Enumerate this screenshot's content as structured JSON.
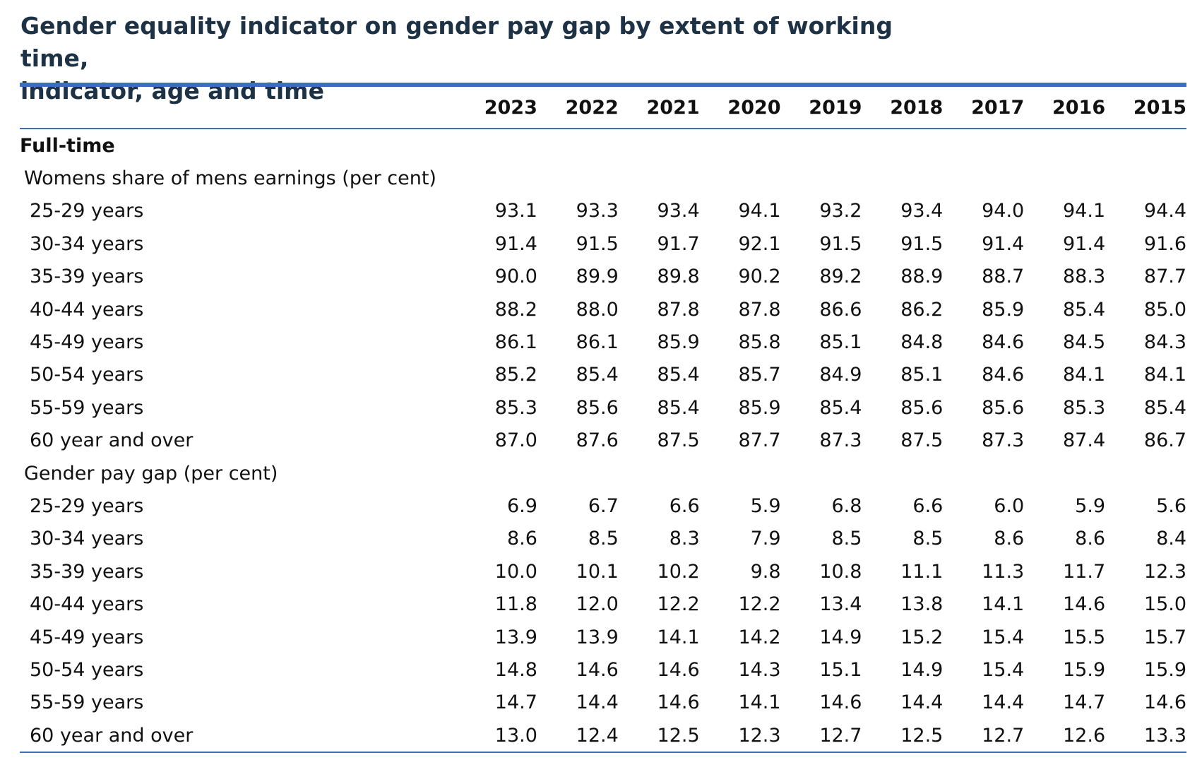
{
  "title_lines": [
    "Gender equality indicator on gender pay gap by extent of working time,",
    "indicator, age and time"
  ],
  "columns": [
    "2023",
    "2022",
    "2021",
    "2020",
    "2019",
    "2018",
    "2017",
    "2016",
    "2015"
  ],
  "section": "Full-time",
  "indicators": [
    {
      "label": "Womens share of mens earnings (per cent)",
      "rows": [
        {
          "label": "25-29 years",
          "values": [
            "93.1",
            "93.3",
            "93.4",
            "94.1",
            "93.2",
            "93.4",
            "94.0",
            "94.1",
            "94.4"
          ]
        },
        {
          "label": "30-34 years",
          "values": [
            "91.4",
            "91.5",
            "91.7",
            "92.1",
            "91.5",
            "91.5",
            "91.4",
            "91.4",
            "91.6"
          ]
        },
        {
          "label": "35-39 years",
          "values": [
            "90.0",
            "89.9",
            "89.8",
            "90.2",
            "89.2",
            "88.9",
            "88.7",
            "88.3",
            "87.7"
          ]
        },
        {
          "label": "40-44 years",
          "values": [
            "88.2",
            "88.0",
            "87.8",
            "87.8",
            "86.6",
            "86.2",
            "85.9",
            "85.4",
            "85.0"
          ]
        },
        {
          "label": "45-49 years",
          "values": [
            "86.1",
            "86.1",
            "85.9",
            "85.8",
            "85.1",
            "84.8",
            "84.6",
            "84.5",
            "84.3"
          ]
        },
        {
          "label": "50-54 years",
          "values": [
            "85.2",
            "85.4",
            "85.4",
            "85.7",
            "84.9",
            "85.1",
            "84.6",
            "84.1",
            "84.1"
          ]
        },
        {
          "label": "55-59 years",
          "values": [
            "85.3",
            "85.6",
            "85.4",
            "85.9",
            "85.4",
            "85.6",
            "85.6",
            "85.3",
            "85.4"
          ]
        },
        {
          "label": "60 year and over",
          "values": [
            "87.0",
            "87.6",
            "87.5",
            "87.7",
            "87.3",
            "87.5",
            "87.3",
            "87.4",
            "86.7"
          ]
        }
      ]
    },
    {
      "label": "Gender pay gap (per cent)",
      "rows": [
        {
          "label": "25-29 years",
          "values": [
            "6.9",
            "6.7",
            "6.6",
            "5.9",
            "6.8",
            "6.6",
            "6.0",
            "5.9",
            "5.6"
          ]
        },
        {
          "label": "30-34 years",
          "values": [
            "8.6",
            "8.5",
            "8.3",
            "7.9",
            "8.5",
            "8.5",
            "8.6",
            "8.6",
            "8.4"
          ]
        },
        {
          "label": "35-39 years",
          "values": [
            "10.0",
            "10.1",
            "10.2",
            "9.8",
            "10.8",
            "11.1",
            "11.3",
            "11.7",
            "12.3"
          ]
        },
        {
          "label": "40-44 years",
          "values": [
            "11.8",
            "12.0",
            "12.2",
            "12.2",
            "13.4",
            "13.8",
            "14.1",
            "14.6",
            "15.0"
          ]
        },
        {
          "label": "45-49 years",
          "values": [
            "13.9",
            "13.9",
            "14.1",
            "14.2",
            "14.9",
            "15.2",
            "15.4",
            "15.5",
            "15.7"
          ]
        },
        {
          "label": "50-54 years",
          "values": [
            "14.8",
            "14.6",
            "14.6",
            "14.3",
            "15.1",
            "14.9",
            "15.4",
            "15.9",
            "15.9"
          ]
        },
        {
          "label": "55-59 years",
          "values": [
            "14.7",
            "14.4",
            "14.6",
            "14.1",
            "14.6",
            "14.4",
            "14.4",
            "14.7",
            "14.6"
          ]
        },
        {
          "label": "60 year and over",
          "values": [
            "13.0",
            "12.4",
            "12.5",
            "12.3",
            "12.7",
            "12.5",
            "12.7",
            "12.6",
            "13.3"
          ]
        }
      ]
    }
  ],
  "colors": {
    "title": "#1e3245",
    "rule": "#3b6fbe"
  }
}
